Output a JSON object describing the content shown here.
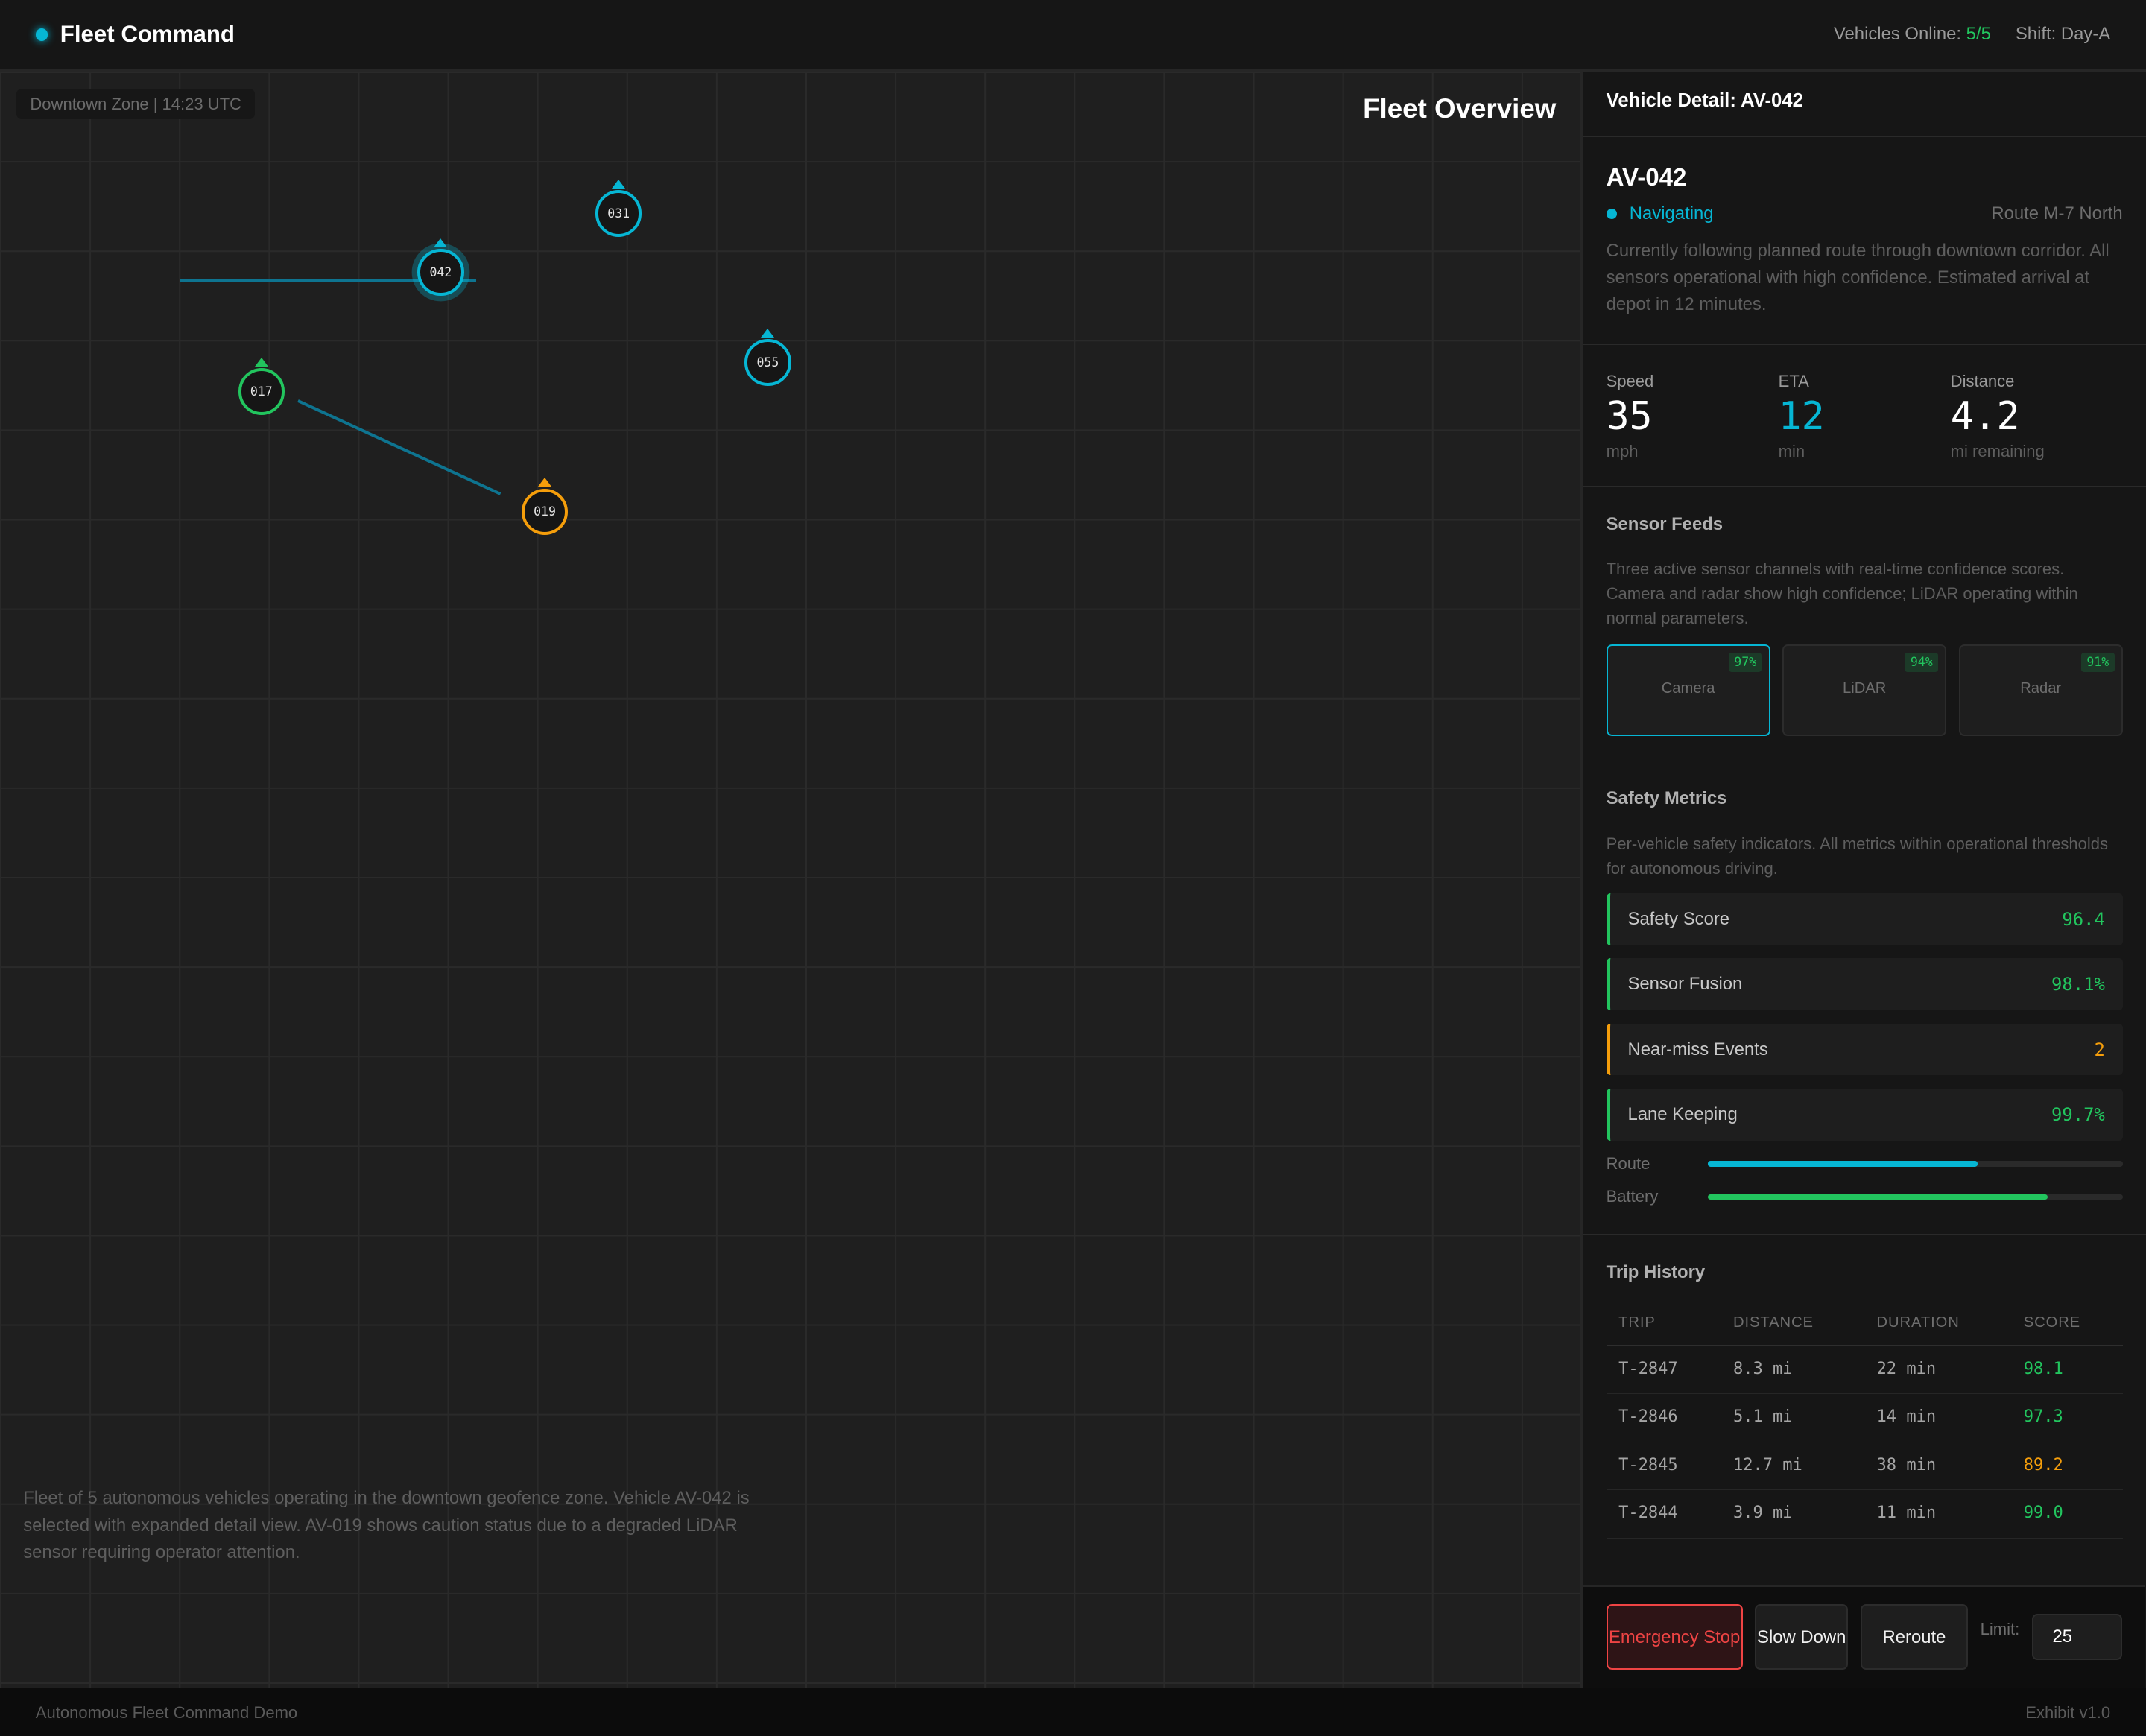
{
  "header": {
    "title": "Fleet Command",
    "vehicles_online_label": "Vehicles Online:",
    "vehicles_online_value": "5/5",
    "shift": "Shift: Day-A"
  },
  "map": {
    "zone_label": "Downtown Zone | 14:23 UTC",
    "title": "Fleet Overview",
    "vehicles": [
      {
        "id": "031",
        "status_color": "#06b6d4"
      },
      {
        "id": "042",
        "status_color": "#06b6d4",
        "selected": true
      },
      {
        "id": "055",
        "status_color": "#06b6d4"
      },
      {
        "id": "017",
        "status_color": "#22c55e"
      },
      {
        "id": "019",
        "status_color": "#f59e0b"
      }
    ],
    "description": "Fleet of 5 autonomous vehicles operating in the downtown geofence zone. Vehicle AV-042 is selected with expanded detail view. AV-019 shows caution status due to a degraded LiDAR sensor requiring operator attention."
  },
  "detail": {
    "panel_title": "Vehicle Detail: AV-042",
    "vehicle_id": "AV-042",
    "status": "Navigating",
    "route": "Route M-7 North",
    "description": "Currently following planned route through downtown corridor. All sensors operational with high confidence. Estimated arrival at depot in 12 minutes.",
    "stats": [
      {
        "label": "Speed",
        "value": "35",
        "unit": "mph"
      },
      {
        "label": "ETA",
        "value": "12",
        "unit": "min"
      },
      {
        "label": "Distance",
        "value": "4.2",
        "unit": "mi remaining"
      }
    ]
  },
  "sensors": {
    "title": "Sensor Feeds",
    "description": "Three active sensor channels with real-time confidence scores. Camera and radar show high confidence; LiDAR operating within normal parameters.",
    "items": [
      {
        "name": "Camera",
        "confidence": "97%"
      },
      {
        "name": "LiDAR",
        "confidence": "94%"
      },
      {
        "name": "Radar",
        "confidence": "91%"
      }
    ]
  },
  "safety": {
    "title": "Safety Metrics",
    "description": "Per-vehicle safety indicators. All metrics within operational thresholds for autonomous driving.",
    "metrics": [
      {
        "label": "Safety Score",
        "value": "96.4",
        "color": "#22c55e"
      },
      {
        "label": "Sensor Fusion",
        "value": "98.1%",
        "color": "#22c55e"
      },
      {
        "label": "Near-miss Events",
        "value": "2",
        "color": "#f59e0b"
      },
      {
        "label": "Lane Keeping",
        "value": "99.7%",
        "color": "#22c55e"
      }
    ],
    "bars": [
      {
        "label": "Route",
        "percent": 65,
        "color": "#06b6d4"
      },
      {
        "label": "Battery",
        "percent": 82,
        "color": "#22c55e"
      }
    ]
  },
  "trips": {
    "title": "Trip History",
    "columns": [
      "TRIP",
      "DISTANCE",
      "DURATION",
      "SCORE"
    ],
    "rows": [
      {
        "trip": "T-2847",
        "distance": "8.3 mi",
        "duration": "22 min",
        "score": "98.1",
        "color": "#22c55e"
      },
      {
        "trip": "T-2846",
        "distance": "5.1 mi",
        "duration": "14 min",
        "score": "97.3",
        "color": "#22c55e"
      },
      {
        "trip": "T-2845",
        "distance": "12.7 mi",
        "duration": "38 min",
        "score": "89.2",
        "color": "#f59e0b"
      },
      {
        "trip": "T-2844",
        "distance": "3.9 mi",
        "duration": "11 min",
        "score": "99.0",
        "color": "#22c55e"
      }
    ]
  },
  "actions": {
    "emergency_stop": "Emergency Stop",
    "slow_down": "Slow Down",
    "reroute": "Reroute",
    "limit_label": "Limit:",
    "limit_value": "25"
  },
  "footer": {
    "left": "Autonomous Fleet Command Demo",
    "right": "Exhibit v1.0"
  }
}
